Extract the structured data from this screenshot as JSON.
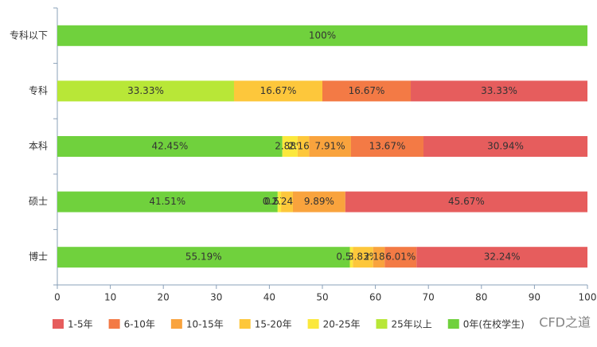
{
  "chart_data": {
    "type": "stacked-barh",
    "categories": [
      "专科以下",
      "专科",
      "本科",
      "硕士",
      "博士"
    ],
    "series": [
      {
        "name": "1-5年",
        "color": "#e65d5d",
        "values": [
          0,
          33.33,
          30.94,
          45.67,
          32.24
        ],
        "value_labels": [
          null,
          "33.33%",
          "30.94%",
          "45.67%",
          "32.24%"
        ]
      },
      {
        "name": "6-10年",
        "color": "#f37a45",
        "values": [
          0,
          16.67,
          13.67,
          0,
          6.01
        ],
        "value_labels": [
          null,
          "16.67%",
          "13.67%",
          null,
          "6.01%"
        ]
      },
      {
        "name": "10-15年",
        "color": "#f9a33d",
        "values": [
          0,
          0,
          7.91,
          9.89,
          2.18
        ],
        "value_labels": [
          null,
          null,
          "7.91%",
          "9.89%",
          "2.18%"
        ]
      },
      {
        "name": "15-20年",
        "color": "#fdc73b",
        "values": [
          0,
          16.67,
          2.16,
          2.24,
          3.83
        ],
        "value_labels": [
          null,
          "16.67%",
          "2.16%",
          "2.24%",
          "3.83%"
        ]
      },
      {
        "name": "20-25年",
        "color": "#fbe83c",
        "values": [
          0,
          0,
          2.88,
          0.57,
          0.55
        ],
        "value_labels": [
          null,
          null,
          "2.88%",
          "0.57%",
          "0.55%"
        ]
      },
      {
        "name": "25年以上",
        "color": "#b8e737",
        "values": [
          0,
          33.33,
          0,
          0.12,
          0
        ],
        "value_labels": [
          null,
          "33.33%",
          null,
          "0.12%",
          null
        ]
      },
      {
        "name": "0年(在校学生)",
        "color": "#70d13d",
        "values": [
          100,
          0,
          42.45,
          41.51,
          55.19
        ],
        "value_labels": [
          "100%",
          null,
          "42.45%",
          "41.51%",
          "55.19%"
        ]
      }
    ],
    "xlim": [
      0,
      100
    ],
    "xticks": [
      0,
      10,
      20,
      30,
      40,
      50,
      60,
      70,
      80,
      90,
      100
    ],
    "watermark": "CFD之道"
  }
}
